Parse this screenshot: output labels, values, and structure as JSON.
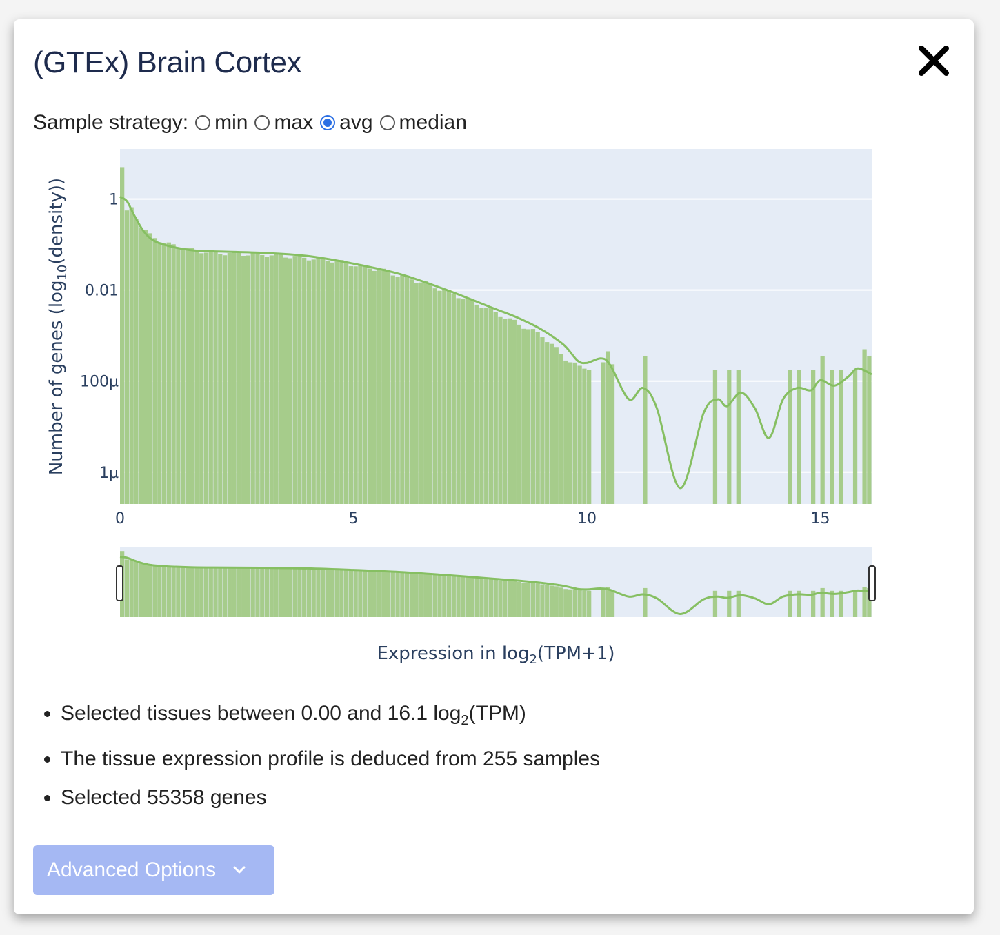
{
  "modal": {
    "title": "(GTEx) Brain Cortex"
  },
  "strategy": {
    "label": "Sample strategy:",
    "options": [
      {
        "label": "min",
        "checked": false
      },
      {
        "label": "max",
        "checked": false
      },
      {
        "label": "avg",
        "checked": true
      },
      {
        "label": "median",
        "checked": false
      }
    ]
  },
  "chart_data": {
    "type": "bar",
    "xlabel_prefix": "Expression in log",
    "xlabel_sub": "2",
    "xlabel_suffix": "(TPM+1)",
    "ylabel_prefix": "Number of genes (log",
    "ylabel_sub": "10",
    "ylabel_suffix": "(density))",
    "x_range": [
      0,
      16.1
    ],
    "y_scale": "log",
    "y_range_log10": [
      -6.7,
      1.1
    ],
    "x_ticks": [
      {
        "value": 0,
        "label": "0"
      },
      {
        "value": 5,
        "label": "5"
      },
      {
        "value": 10,
        "label": "10"
      },
      {
        "value": 15,
        "label": "15"
      }
    ],
    "y_ticks": [
      {
        "log10": 0,
        "label": "1"
      },
      {
        "log10": -2,
        "label": "0.01"
      },
      {
        "log10": -4,
        "label": "100µ"
      },
      {
        "log10": -6,
        "label": "1µ"
      }
    ],
    "bar_color": "#a6cc8b",
    "line_color": "#86bf62",
    "bin_width": 0.1,
    "histogram_log10": [
      [
        0.0,
        0.7
      ],
      [
        0.1,
        -0.3
      ],
      [
        0.2,
        -0.2
      ],
      [
        0.3,
        -0.4
      ],
      [
        0.4,
        -0.6
      ],
      [
        0.5,
        -0.7
      ],
      [
        0.6,
        -0.8
      ],
      [
        0.7,
        -0.85
      ],
      [
        0.8,
        -0.9
      ],
      [
        0.9,
        -0.95
      ],
      [
        1.0,
        -1.0
      ],
      [
        1.5,
        -1.12
      ],
      [
        2.0,
        -1.18
      ],
      [
        2.5,
        -1.2
      ],
      [
        3.0,
        -1.22
      ],
      [
        3.5,
        -1.25
      ],
      [
        4.0,
        -1.3
      ],
      [
        4.5,
        -1.35
      ],
      [
        5.0,
        -1.45
      ],
      [
        5.5,
        -1.55
      ],
      [
        6.0,
        -1.7
      ],
      [
        6.5,
        -1.85
      ],
      [
        7.0,
        -2.05
      ],
      [
        7.5,
        -2.25
      ],
      [
        8.0,
        -2.5
      ],
      [
        8.5,
        -2.75
      ],
      [
        9.0,
        -3.0
      ],
      [
        9.5,
        -3.5
      ],
      [
        9.8,
        -3.7
      ],
      [
        10.0,
        -3.7
      ],
      [
        10.1,
        -3.7
      ],
      [
        10.2,
        -3.4
      ],
      [
        10.3,
        -3.6
      ],
      [
        10.4,
        -3.3
      ],
      [
        10.5,
        -3.6
      ]
    ],
    "sparse_bars_log10": [
      [
        11.2,
        -3.45
      ],
      [
        12.7,
        -3.75
      ],
      [
        13.0,
        -3.75
      ],
      [
        13.2,
        -3.75
      ],
      [
        14.3,
        -3.75
      ],
      [
        14.5,
        -3.75
      ],
      [
        14.8,
        -3.75
      ],
      [
        15.0,
        -3.45
      ],
      [
        15.2,
        -3.75
      ],
      [
        15.4,
        -3.75
      ],
      [
        15.7,
        -3.75
      ],
      [
        15.9,
        -3.3
      ],
      [
        16.0,
        -3.45
      ]
    ],
    "kde_log10": [
      [
        0.0,
        0.05
      ],
      [
        0.15,
        -0.05
      ],
      [
        0.3,
        -0.35
      ],
      [
        0.5,
        -0.7
      ],
      [
        0.7,
        -0.9
      ],
      [
        1.0,
        -1.02
      ],
      [
        1.5,
        -1.12
      ],
      [
        2.0,
        -1.15
      ],
      [
        3.0,
        -1.18
      ],
      [
        4.0,
        -1.25
      ],
      [
        5.0,
        -1.42
      ],
      [
        6.0,
        -1.65
      ],
      [
        7.0,
        -2.0
      ],
      [
        8.0,
        -2.4
      ],
      [
        8.5,
        -2.6
      ],
      [
        9.0,
        -2.85
      ],
      [
        9.5,
        -3.2
      ],
      [
        9.8,
        -3.55
      ],
      [
        10.0,
        -3.6
      ],
      [
        10.3,
        -3.5
      ],
      [
        10.5,
        -3.65
      ],
      [
        10.9,
        -4.4
      ],
      [
        11.2,
        -4.15
      ],
      [
        11.5,
        -4.6
      ],
      [
        12.0,
        -6.35
      ],
      [
        12.5,
        -4.7
      ],
      [
        12.8,
        -4.4
      ],
      [
        13.0,
        -4.55
      ],
      [
        13.3,
        -4.25
      ],
      [
        13.6,
        -4.6
      ],
      [
        13.9,
        -5.25
      ],
      [
        14.2,
        -4.4
      ],
      [
        14.5,
        -4.15
      ],
      [
        14.8,
        -4.2
      ],
      [
        15.0,
        -3.98
      ],
      [
        15.3,
        -4.1
      ],
      [
        15.6,
        -3.9
      ],
      [
        15.8,
        -3.72
      ],
      [
        16.1,
        -3.85
      ]
    ]
  },
  "info": {
    "line1_prefix": "Selected tissues between 0.00 and 16.1 log",
    "line1_sub": "2",
    "line1_suffix": "(TPM)",
    "line2": "The tissue expression profile is deduced from 255 samples",
    "line3": "Selected 55358 genes"
  },
  "advanced": {
    "label": "Advanced Options"
  },
  "icons": {
    "close": "close-icon",
    "chevron": "chevron-down-icon"
  }
}
